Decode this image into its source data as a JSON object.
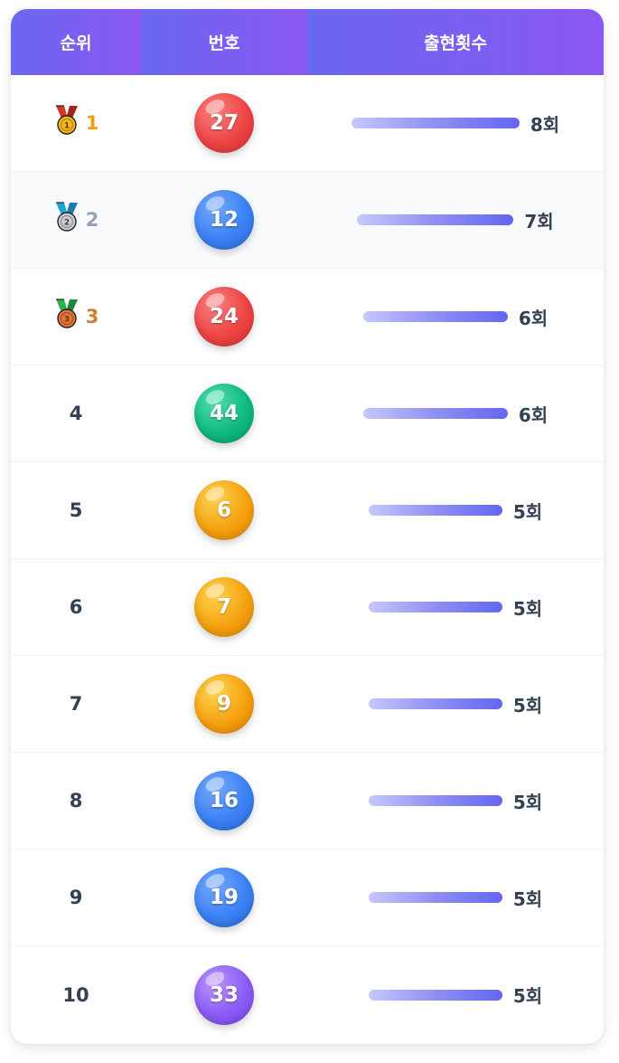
{
  "table": {
    "headers": {
      "rank": "순위",
      "number": "번호",
      "count": "출현횟수"
    },
    "max_count": 8,
    "rows": [
      {
        "rank": "1",
        "medal": "gold-medal-icon",
        "rank_color": "#f59e0b",
        "number": "27",
        "ball_color": "red",
        "count": 8,
        "count_label": "8회"
      },
      {
        "rank": "2",
        "medal": "silver-medal-icon",
        "rank_color": "#94a3b8",
        "number": "12",
        "ball_color": "blue",
        "count": 7,
        "count_label": "7회"
      },
      {
        "rank": "3",
        "medal": "bronze-medal-icon",
        "rank_color": "#cd7f32",
        "number": "24",
        "ball_color": "red",
        "count": 6,
        "count_label": "6회"
      },
      {
        "rank": "4",
        "medal": null,
        "rank_color": "#334155",
        "number": "44",
        "ball_color": "green",
        "count": 6,
        "count_label": "6회"
      },
      {
        "rank": "5",
        "medal": null,
        "rank_color": "#334155",
        "number": "6",
        "ball_color": "yellow",
        "count": 5,
        "count_label": "5회"
      },
      {
        "rank": "6",
        "medal": null,
        "rank_color": "#334155",
        "number": "7",
        "ball_color": "yellow",
        "count": 5,
        "count_label": "5회"
      },
      {
        "rank": "7",
        "medal": null,
        "rank_color": "#334155",
        "number": "9",
        "ball_color": "yellow",
        "count": 5,
        "count_label": "5회"
      },
      {
        "rank": "8",
        "medal": null,
        "rank_color": "#334155",
        "number": "16",
        "ball_color": "blue",
        "count": 5,
        "count_label": "5회"
      },
      {
        "rank": "9",
        "medal": null,
        "rank_color": "#334155",
        "number": "19",
        "ball_color": "blue",
        "count": 5,
        "count_label": "5회"
      },
      {
        "rank": "10",
        "medal": null,
        "rank_color": "#334155",
        "number": "33",
        "ball_color": "purple",
        "count": 5,
        "count_label": "5회"
      }
    ]
  },
  "colors": {
    "header_gradient_start": "#6a67f1",
    "header_gradient_end": "#8b58f2",
    "bar_start": "#c4c8fb",
    "bar_end": "#6366f1",
    "alt_row": "#f8fafc"
  }
}
